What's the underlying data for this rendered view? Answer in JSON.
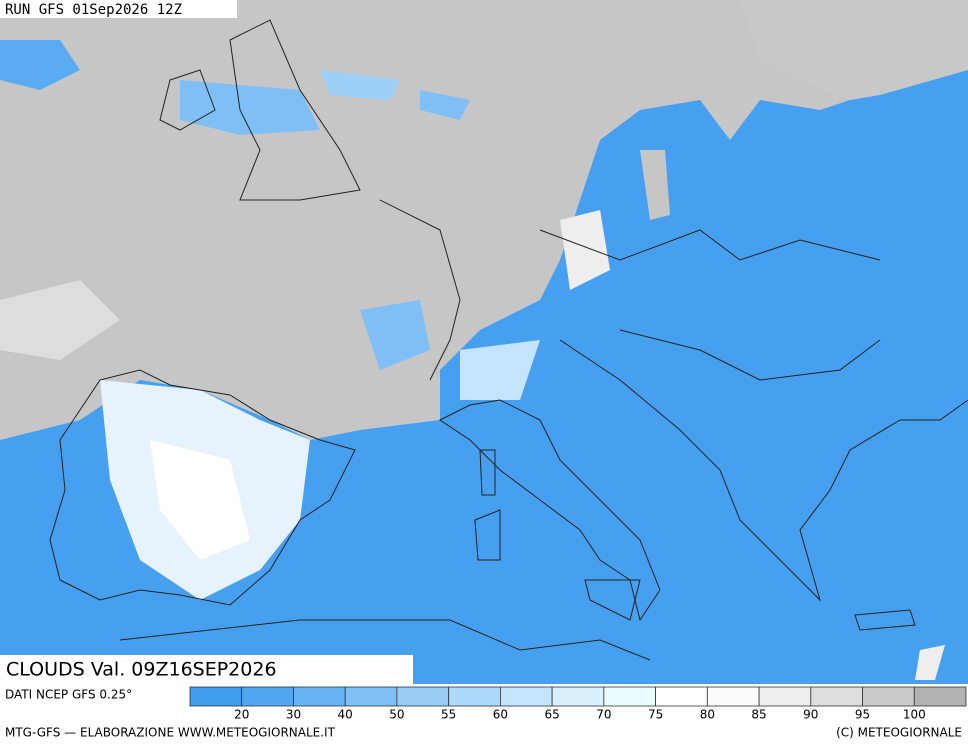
{
  "header": {
    "run": "RUN GFS 01Sep2026 12Z"
  },
  "caption": {
    "field": "CLOUDS Val. 09Z16SEP2026"
  },
  "footer": {
    "source": "DATI NCEP GFS 0.25°",
    "credit": "MTG-GFS — ELABORAZIONE WWW.METEOGIORNALE.IT",
    "copyright": "(C) METEOGIORNALE"
  },
  "legend": {
    "ticks": [
      20,
      30,
      40,
      50,
      55,
      60,
      65,
      70,
      75,
      80,
      85,
      90,
      95,
      100
    ],
    "colors": [
      "#3f9cee",
      "#52a7f1",
      "#68b3f3",
      "#7fbff5",
      "#97ccf7",
      "#aed8f9",
      "#c4e4fb",
      "#daf0fc",
      "#ecfdff",
      "#ffffff",
      "#fbfbfb",
      "#eeeeee",
      "#dddddd",
      "#cbcbcb",
      "#b2b2b2"
    ]
  }
}
